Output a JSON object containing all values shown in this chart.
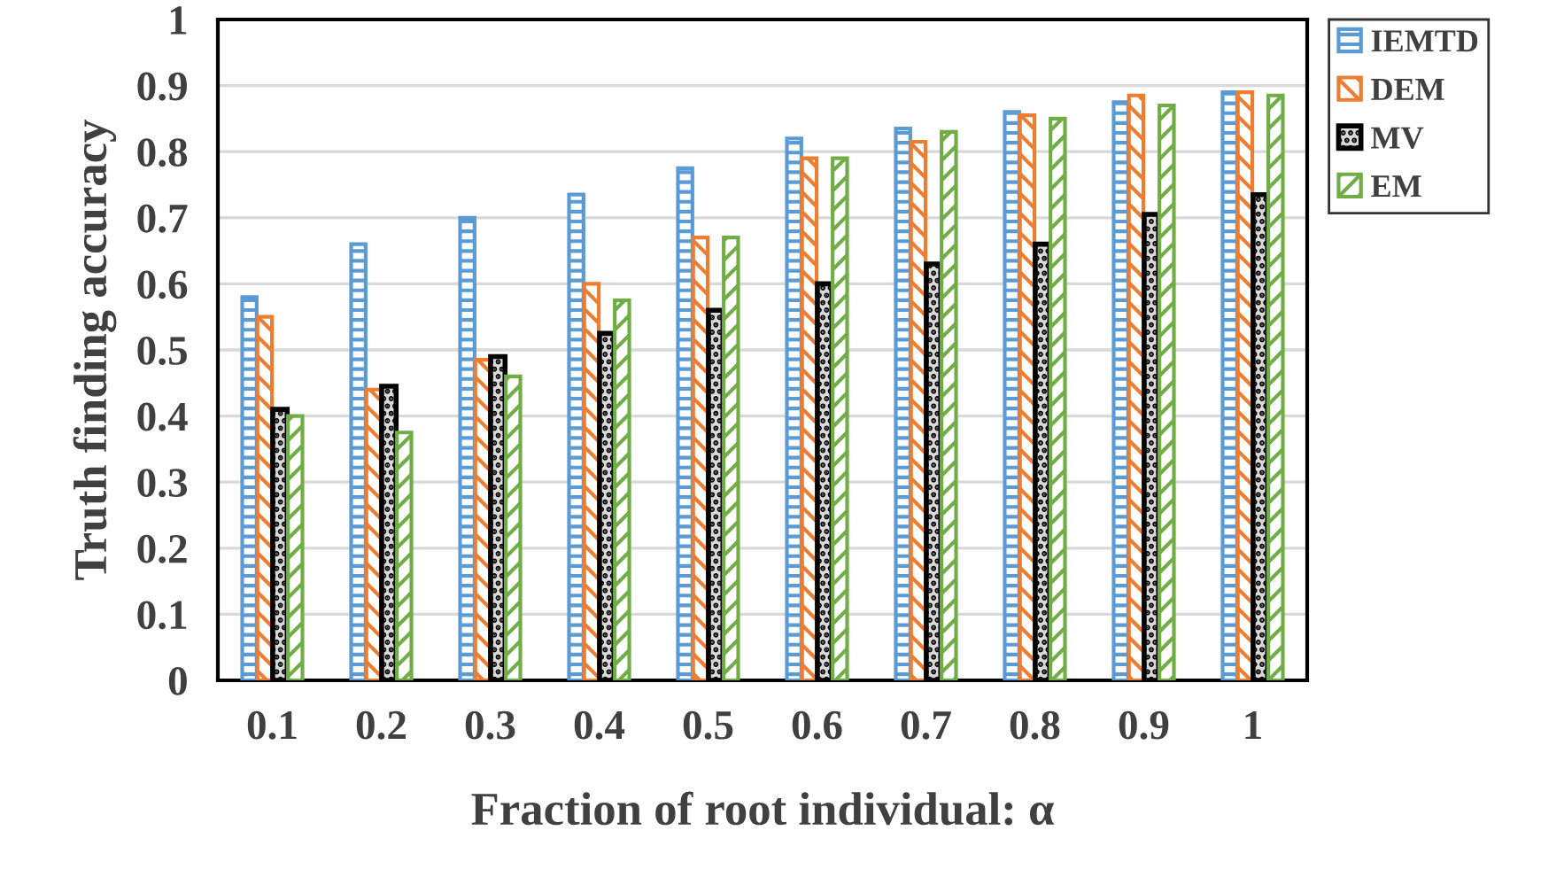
{
  "chart_data": {
    "type": "bar",
    "xlabel": "Fraction of root individual: α",
    "ylabel": "Truth finding accuracy",
    "categories": [
      "0.1",
      "0.2",
      "0.3",
      "0.4",
      "0.5",
      "0.6",
      "0.7",
      "0.8",
      "0.9",
      "1"
    ],
    "series": [
      {
        "name": "IEMTD",
        "color": "#5b9bd5",
        "values": [
          0.58,
          0.66,
          0.7,
          0.735,
          0.775,
          0.82,
          0.835,
          0.86,
          0.875,
          0.89
        ]
      },
      {
        "name": "DEM",
        "color": "#ed7d31",
        "values": [
          0.55,
          0.44,
          0.485,
          0.6,
          0.67,
          0.79,
          0.815,
          0.855,
          0.885,
          0.89
        ]
      },
      {
        "name": "MV",
        "color": "#000000",
        "values": [
          0.41,
          0.445,
          0.49,
          0.525,
          0.56,
          0.6,
          0.63,
          0.66,
          0.705,
          0.735
        ]
      },
      {
        "name": "EM",
        "color": "#70ad47",
        "values": [
          0.4,
          0.375,
          0.46,
          0.575,
          0.67,
          0.79,
          0.83,
          0.85,
          0.87,
          0.885
        ]
      }
    ],
    "ylim": [
      0,
      1
    ],
    "yticks": [
      0,
      0.1,
      0.2,
      0.3,
      0.4,
      0.5,
      0.6,
      0.7,
      0.8,
      0.9,
      1
    ],
    "grid": "y",
    "legend": "top right"
  }
}
